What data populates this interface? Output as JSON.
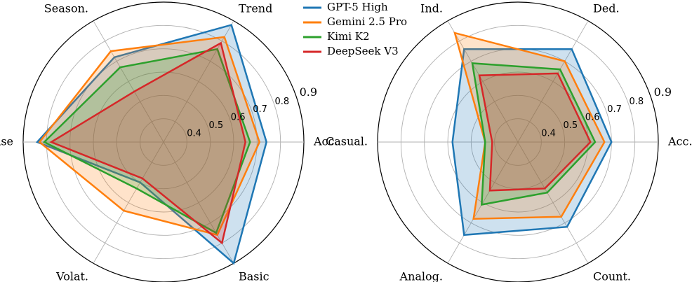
{
  "chart_data": [
    {
      "type": "radar",
      "r_range": [
        0.3,
        0.9
      ],
      "rticks": [
        "0.4",
        "0.5",
        "0.6",
        "0.7",
        "0.8",
        "0.9"
      ],
      "axes": [
        "Acc.",
        "Trend",
        "Season.",
        "Noise",
        "Volat.",
        "Basic"
      ],
      "series": [
        {
          "name": "GPT-5 High",
          "color": "#1f77b4",
          "values": [
            0.74,
            0.88,
            0.72,
            0.84,
            0.5,
            0.9
          ]
        },
        {
          "name": "Gemini 2.5 Pro",
          "color": "#ff7f0e",
          "values": [
            0.71,
            0.82,
            0.75,
            0.83,
            0.64,
            0.76
          ]
        },
        {
          "name": "Kimi K2",
          "color": "#2ca02c",
          "values": [
            0.67,
            0.76,
            0.67,
            0.81,
            0.53,
            0.75
          ]
        },
        {
          "name": "DeepSeek V3",
          "color": "#d62728",
          "values": [
            0.65,
            0.79,
            0.55,
            0.78,
            0.48,
            0.8
          ]
        }
      ]
    },
    {
      "type": "radar",
      "r_range": [
        0.3,
        0.9
      ],
      "rticks": [
        "0.4",
        "0.5",
        "0.6",
        "0.7",
        "0.8",
        "0.9"
      ],
      "axes": [
        "Acc.",
        "Ded.",
        "Ind.",
        "Casual.",
        "Analog.",
        "Count."
      ],
      "series": [
        {
          "name": "GPT-5 High",
          "color": "#1f77b4",
          "values": [
            0.7,
            0.76,
            0.76,
            0.58,
            0.76,
            0.72
          ]
        },
        {
          "name": "Gemini 2.5 Pro",
          "color": "#ff7f0e",
          "values": [
            0.67,
            0.7,
            0.84,
            0.44,
            0.68,
            0.67
          ]
        },
        {
          "name": "Kimi K2",
          "color": "#2ca02c",
          "values": [
            0.63,
            0.66,
            0.69,
            0.44,
            0.61,
            0.55
          ]
        },
        {
          "name": "DeepSeek V3",
          "color": "#d62728",
          "values": [
            0.61,
            0.64,
            0.63,
            0.41,
            0.54,
            0.53
          ]
        }
      ]
    }
  ],
  "legend": [
    {
      "label": "GPT-5 High",
      "color": "#1f77b4"
    },
    {
      "label": "Gemini 2.5 Pro",
      "color": "#ff7f0e"
    },
    {
      "label": "Kimi K2",
      "color": "#2ca02c"
    },
    {
      "label": "DeepSeek V3",
      "color": "#d62728"
    }
  ]
}
